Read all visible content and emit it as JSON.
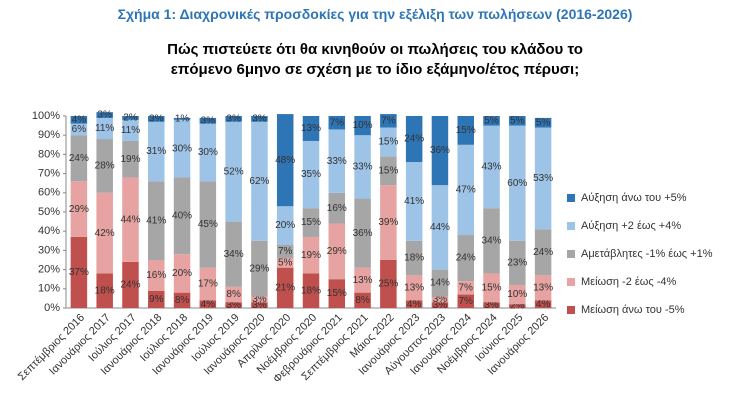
{
  "chart_data": {
    "type": "stacked_bar",
    "title": "Σχήμα 1: Διαχρονικές προσδοκίες για την εξέλιξη των πωλήσεων (2016-2026)",
    "subtitle": "Πώς πιστεύετε ότι θα κινηθούν οι πωλήσεις του κλάδου το επόμενο 6μηνο σε σχέση με το ίδιο εξάμηνο/έτος πέρυσι;",
    "categories": [
      "Σεπτέμβριος 2016",
      "Ιανουάριος 2017",
      "Ιούλιος 2017",
      "Ιανουάριος 2018",
      "Ιούλιος 2018",
      "Ιανουάριος 2019",
      "Ιούλιος 2019",
      "Ιανουάριος 2020",
      "Απρίλιος 2020",
      "Νοέμβριος 2020",
      "Φεβρουάριος 2021",
      "Σεπτέμβριος 2021",
      "Μάιος 2022",
      "Ιανουάριος 2023",
      "Αύγουστος 2023",
      "Ιανουάριος 2024",
      "Νοέμβριος 2024",
      "Ιούνιος 2025",
      "Ιανουάριος 2026"
    ],
    "series": [
      {
        "name": "Μείωση άνω του -5%",
        "color": "#c0504d",
        "values": [
          37,
          18,
          24,
          9,
          8,
          4,
          3,
          3,
          21,
          18,
          15,
          8,
          25,
          4,
          3,
          7,
          3,
          2,
          4
        ],
        "value_labels": [
          "37%",
          "18%",
          "24%",
          "9%",
          "8%",
          "4%",
          "3%",
          "3%",
          "21%",
          "18%",
          "15%",
          "8%",
          "25%",
          "4%",
          "3%",
          "7%",
          "3%",
          "2%",
          "4%"
        ]
      },
      {
        "name": "Μείωση -2 έως -4%",
        "color": "#e6a3a1",
        "values": [
          29,
          42,
          44,
          16,
          20,
          17,
          8,
          3,
          5,
          19,
          29,
          13,
          39,
          13,
          3,
          7,
          15,
          10,
          13
        ],
        "value_labels": [
          "29%",
          "42%",
          "44%",
          "16%",
          "20%",
          "17%",
          "8%",
          "3%",
          "5%",
          "19%",
          "29%",
          "13%",
          "39%",
          "13%",
          "3%",
          "7%",
          "15%",
          "10%",
          "13%"
        ]
      },
      {
        "name": "Αμετάβλητες -1% έως +1%",
        "color": "#a6a6a6",
        "values": [
          24,
          28,
          19,
          41,
          40,
          45,
          34,
          29,
          7,
          15,
          16,
          36,
          15,
          18,
          14,
          24,
          34,
          23,
          24
        ],
        "value_labels": [
          "24%",
          "28%",
          "19%",
          "41%",
          "40%",
          "45%",
          "34%",
          "29%",
          "7%",
          "15%",
          "16%",
          "36%",
          "15%",
          "18%",
          "14%",
          "24%",
          "34%",
          "23%",
          "24%"
        ]
      },
      {
        "name": "Αύξηση +2 έως +4%",
        "color": "#9dc3e6",
        "values": [
          6,
          11,
          11,
          31,
          30,
          30,
          52,
          62,
          20,
          35,
          33,
          33,
          15,
          41,
          44,
          47,
          43,
          60,
          53
        ],
        "value_labels": [
          "6%",
          "11%",
          "11%",
          "31%",
          "30%",
          "30%",
          "52%",
          "62%",
          "20%",
          "35%",
          "33%",
          "33%",
          "15%",
          "41%",
          "44%",
          "47%",
          "43%",
          "60%",
          "53%"
        ]
      },
      {
        "name": "Αύξηση άνω του +5%",
        "color": "#2e75b6",
        "values": [
          4,
          3,
          2,
          3,
          1,
          3,
          3,
          3,
          48,
          13,
          7,
          10,
          7,
          24,
          36,
          15,
          5,
          5,
          5
        ],
        "value_labels": [
          "4%",
          "3%",
          "2%",
          "3%",
          "1%",
          "3%",
          "3%",
          "3%",
          "48%",
          "13%",
          "7%",
          "10%",
          "7%",
          "24%",
          "36%",
          "15%",
          "5%",
          "5%",
          "5%"
        ]
      }
    ],
    "ylim": [
      0,
      100
    ],
    "yticks": [
      {
        "value": 0,
        "label": "0%"
      },
      {
        "value": 10,
        "label": "10%"
      },
      {
        "value": 20,
        "label": "20%"
      },
      {
        "value": 30,
        "label": "30%"
      },
      {
        "value": 40,
        "label": "40%"
      },
      {
        "value": 50,
        "label": "50%"
      },
      {
        "value": 60,
        "label": "60%"
      },
      {
        "value": 70,
        "label": "70%"
      },
      {
        "value": 80,
        "label": "80%"
      },
      {
        "value": 90,
        "label": "90%"
      },
      {
        "value": 100,
        "label": "100%"
      }
    ]
  }
}
